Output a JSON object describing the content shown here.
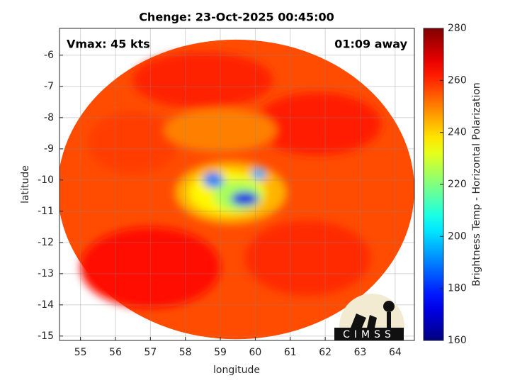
{
  "chart_data": {
    "type": "heatmap",
    "title": "Chenge: 23-Oct-2025 00:45:00",
    "annotations": [
      "Vmax: 45 kts",
      "01:09 away"
    ],
    "xlabel": "longitude",
    "ylabel": "latitude",
    "colorbar_label": "Brightness Temp - Horizontal Polarization",
    "logo_text": "CIMSS",
    "xlim": [
      54.4,
      64.55
    ],
    "ylim": [
      -15.14,
      -5.14
    ],
    "xticks": [
      55,
      56,
      57,
      58,
      59,
      60,
      61,
      62,
      63,
      64
    ],
    "yticks": [
      -6,
      -7,
      -8,
      -9,
      -10,
      -11,
      -12,
      -13,
      -14,
      -15
    ],
    "clim": [
      160,
      280
    ],
    "cticks": [
      160,
      180,
      200,
      220,
      240,
      260,
      280
    ],
    "colormap": "jet",
    "grid": true,
    "swath": {
      "lon": 59.45,
      "lat": -10.3,
      "rx": 5.1,
      "ry": 4.8,
      "value": 256
    },
    "features": [
      {
        "lon": 57.0,
        "lat": -12.8,
        "rx": 2.0,
        "ry": 1.3,
        "value": 263
      },
      {
        "lon": 61.8,
        "lat": -8.2,
        "rx": 1.8,
        "ry": 1.0,
        "value": 262
      },
      {
        "lon": 58.5,
        "lat": -6.8,
        "rx": 2.0,
        "ry": 0.9,
        "value": 261
      },
      {
        "lon": 61.5,
        "lat": -12.5,
        "rx": 1.8,
        "ry": 1.2,
        "value": 260
      },
      {
        "lon": 56.5,
        "lat": -8.8,
        "rx": 1.3,
        "ry": 1.0,
        "value": 258
      },
      {
        "lon": 59.0,
        "lat": -8.4,
        "rx": 1.6,
        "ry": 0.7,
        "value": 250
      },
      {
        "lon": 59.3,
        "lat": -10.4,
        "rx": 1.6,
        "ry": 1.0,
        "value": 244
      },
      {
        "lon": 59.2,
        "lat": -10.4,
        "rx": 1.1,
        "ry": 0.7,
        "value": 236
      },
      {
        "lon": 59.5,
        "lat": -10.5,
        "rx": 0.7,
        "ry": 0.5,
        "value": 225
      },
      {
        "lon": 58.8,
        "lat": -10.0,
        "rx": 0.3,
        "ry": 0.25,
        "value": 190
      },
      {
        "lon": 59.7,
        "lat": -10.6,
        "rx": 0.4,
        "ry": 0.22,
        "value": 172
      },
      {
        "lon": 60.1,
        "lat": -9.8,
        "rx": 0.2,
        "ry": 0.2,
        "value": 195
      }
    ]
  }
}
